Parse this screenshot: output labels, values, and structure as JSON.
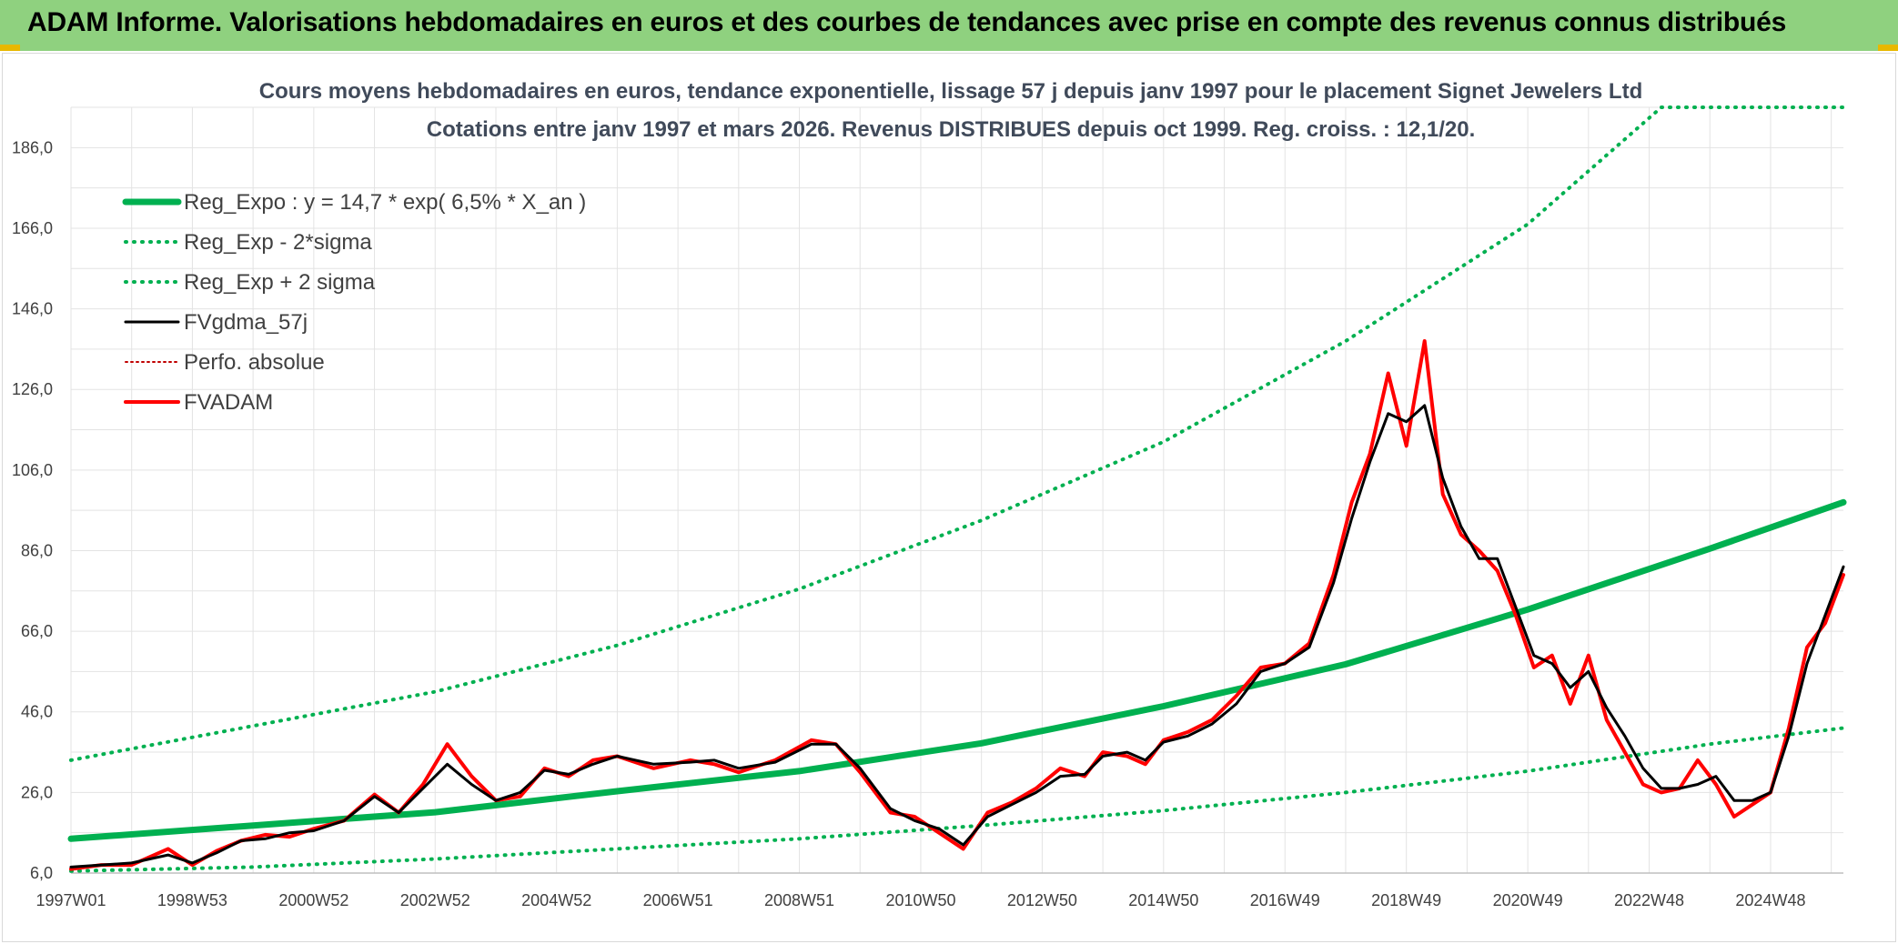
{
  "banner": {
    "title": "ADAM Informe. Valorisations hebdomadaires en euros et des courbes de tendances avec prise en compte des revenus connus distribués"
  },
  "chart_data": {
    "type": "line",
    "title": "Cours moyens hebdomadaires en euros, tendance exponentielle, lissage 57 j depuis janv 1997 pour le placement Signet Jewelers Ltd",
    "subtitle": "Cotations entre janv 1997 et mars 2026. Revenus DISTRIBUES depuis oct 1999. Reg. croiss. : 12,1/20.",
    "xlabel": "",
    "ylabel": "",
    "x_range": [
      1997.0,
      2026.2
    ],
    "ylim": [
      6.0,
      196.0
    ],
    "y_ticks": [
      "6,0",
      "26,0",
      "46,0",
      "66,0",
      "86,0",
      "106,0",
      "126,0",
      "146,0",
      "166,0",
      "186,0"
    ],
    "x_ticks": [
      {
        "label": "1997W01",
        "year": 1997.0
      },
      {
        "label": "1998W53",
        "year": 1999.0
      },
      {
        "label": "2000W52",
        "year": 2001.0
      },
      {
        "label": "2002W52",
        "year": 2003.0
      },
      {
        "label": "2004W52",
        "year": 2005.0
      },
      {
        "label": "2006W51",
        "year": 2007.0
      },
      {
        "label": "2008W51",
        "year": 2009.0
      },
      {
        "label": "2010W50",
        "year": 2011.0
      },
      {
        "label": "2012W50",
        "year": 2013.0
      },
      {
        "label": "2014W50",
        "year": 2015.0
      },
      {
        "label": "2016W49",
        "year": 2017.0
      },
      {
        "label": "2018W49",
        "year": 2019.0
      },
      {
        "label": "2020W49",
        "year": 2021.0
      },
      {
        "label": "2022W48",
        "year": 2023.0
      },
      {
        "label": "2024W48",
        "year": 2025.0
      }
    ],
    "grid": true,
    "legend_position": "top-left",
    "series": [
      {
        "name": "Reg_Expo : y = 14,7 * exp( 6,5% *  X_an )",
        "color": "#00b050",
        "style": "solid-thick",
        "points": [
          [
            1997.0,
            14.5
          ],
          [
            2000.0,
            17.8
          ],
          [
            2003.0,
            21.1
          ],
          [
            2006.0,
            26.3
          ],
          [
            2009.0,
            31.3
          ],
          [
            2012.0,
            38.2
          ],
          [
            2015.0,
            47.4
          ],
          [
            2018.0,
            57.8
          ],
          [
            2021.0,
            71.4
          ],
          [
            2024.0,
            86.5
          ],
          [
            2026.2,
            98.0
          ]
        ]
      },
      {
        "name": "Reg_Exp - 2*sigma",
        "color": "#00b050",
        "style": "dotted",
        "points": [
          [
            1997.0,
            6.5
          ],
          [
            2000.0,
            7.5
          ],
          [
            2003.0,
            9.5
          ],
          [
            2006.0,
            12.0
          ],
          [
            2009.0,
            14.5
          ],
          [
            2012.0,
            17.8
          ],
          [
            2015.0,
            21.5
          ],
          [
            2018.0,
            26.0
          ],
          [
            2021.0,
            31.3
          ],
          [
            2024.0,
            38.0
          ],
          [
            2026.2,
            42.0
          ]
        ]
      },
      {
        "name": "Reg_Exp + 2 sigma",
        "color": "#00b050",
        "style": "dotted",
        "points": [
          [
            1997.0,
            34.0
          ],
          [
            2000.0,
            42.5
          ],
          [
            2003.0,
            51.0
          ],
          [
            2006.0,
            62.5
          ],
          [
            2009.0,
            76.5
          ],
          [
            2012.0,
            93.5
          ],
          [
            2015.0,
            113.0
          ],
          [
            2018.0,
            138.0
          ],
          [
            2021.0,
            167.0
          ],
          [
            2023.2,
            196.0
          ],
          [
            2026.2,
            196.0
          ]
        ]
      },
      {
        "name": "FVgdma_57j",
        "color": "#000000",
        "style": "solid",
        "points": [
          [
            1997.0,
            7.5
          ],
          [
            1997.5,
            8.0
          ],
          [
            1998.0,
            8.5
          ],
          [
            1998.6,
            10.5
          ],
          [
            1999.0,
            8.5
          ],
          [
            1999.4,
            11.0
          ],
          [
            1999.8,
            14.0
          ],
          [
            2000.2,
            14.5
          ],
          [
            2000.6,
            16.0
          ],
          [
            2001.0,
            16.5
          ],
          [
            2001.5,
            19.0
          ],
          [
            2002.0,
            25.0
          ],
          [
            2002.4,
            21.0
          ],
          [
            2002.8,
            27.0
          ],
          [
            2003.2,
            33.0
          ],
          [
            2003.6,
            28.0
          ],
          [
            2004.0,
            24.0
          ],
          [
            2004.4,
            26.0
          ],
          [
            2004.8,
            31.5
          ],
          [
            2005.2,
            30.5
          ],
          [
            2005.6,
            33.0
          ],
          [
            2006.0,
            35.0
          ],
          [
            2006.6,
            33.0
          ],
          [
            2007.2,
            33.5
          ],
          [
            2007.6,
            34.0
          ],
          [
            2008.0,
            32.0
          ],
          [
            2008.6,
            33.5
          ],
          [
            2009.2,
            38.0
          ],
          [
            2009.6,
            38.0
          ],
          [
            2010.0,
            32.0
          ],
          [
            2010.5,
            22.0
          ],
          [
            2010.9,
            19.0
          ],
          [
            2011.3,
            17.0
          ],
          [
            2011.7,
            13.0
          ],
          [
            2012.1,
            20.0
          ],
          [
            2012.5,
            23.0
          ],
          [
            2012.9,
            26.0
          ],
          [
            2013.3,
            30.0
          ],
          [
            2013.7,
            30.5
          ],
          [
            2014.0,
            35.0
          ],
          [
            2014.4,
            36.0
          ],
          [
            2014.7,
            34.0
          ],
          [
            2015.0,
            38.5
          ],
          [
            2015.4,
            40.0
          ],
          [
            2015.8,
            43.0
          ],
          [
            2016.2,
            48.0
          ],
          [
            2016.6,
            56.0
          ],
          [
            2017.0,
            58.0
          ],
          [
            2017.4,
            62.0
          ],
          [
            2017.8,
            78.0
          ],
          [
            2018.1,
            94.0
          ],
          [
            2018.4,
            108.0
          ],
          [
            2018.7,
            120.0
          ],
          [
            2019.0,
            118.0
          ],
          [
            2019.3,
            122.0
          ],
          [
            2019.6,
            104.0
          ],
          [
            2019.9,
            92.0
          ],
          [
            2020.2,
            84.0
          ],
          [
            2020.5,
            84.0
          ],
          [
            2020.8,
            72.0
          ],
          [
            2021.1,
            60.0
          ],
          [
            2021.4,
            58.0
          ],
          [
            2021.7,
            52.0
          ],
          [
            2022.0,
            56.0
          ],
          [
            2022.3,
            47.0
          ],
          [
            2022.6,
            40.0
          ],
          [
            2022.9,
            32.0
          ],
          [
            2023.2,
            27.0
          ],
          [
            2023.5,
            27.0
          ],
          [
            2023.8,
            28.0
          ],
          [
            2024.1,
            30.0
          ],
          [
            2024.4,
            24.0
          ],
          [
            2024.7,
            24.0
          ],
          [
            2025.0,
            26.0
          ],
          [
            2025.3,
            40.0
          ],
          [
            2025.6,
            58.0
          ],
          [
            2025.9,
            70.0
          ],
          [
            2026.2,
            82.0
          ]
        ]
      },
      {
        "name": "Perfo. absolue",
        "color": "#c00000",
        "style": "dotted-thin",
        "points": []
      },
      {
        "name": "FVADAM",
        "color": "#ff0000",
        "style": "solid-thick",
        "points": [
          [
            1997.0,
            7.0
          ],
          [
            1997.5,
            8.0
          ],
          [
            1998.0,
            8.0
          ],
          [
            1998.6,
            12.0
          ],
          [
            1999.0,
            8.0
          ],
          [
            1999.4,
            11.5
          ],
          [
            1999.8,
            14.0
          ],
          [
            2000.2,
            15.5
          ],
          [
            2000.6,
            15.0
          ],
          [
            2001.0,
            17.0
          ],
          [
            2001.5,
            19.0
          ],
          [
            2002.0,
            25.5
          ],
          [
            2002.4,
            21.0
          ],
          [
            2002.8,
            28.0
          ],
          [
            2003.2,
            38.0
          ],
          [
            2003.6,
            30.0
          ],
          [
            2004.0,
            24.0
          ],
          [
            2004.4,
            25.0
          ],
          [
            2004.8,
            32.0
          ],
          [
            2005.2,
            30.0
          ],
          [
            2005.6,
            34.0
          ],
          [
            2006.0,
            35.0
          ],
          [
            2006.6,
            32.0
          ],
          [
            2007.2,
            34.0
          ],
          [
            2007.6,
            33.0
          ],
          [
            2008.0,
            31.0
          ],
          [
            2008.6,
            34.0
          ],
          [
            2009.2,
            39.0
          ],
          [
            2009.6,
            38.0
          ],
          [
            2010.0,
            31.0
          ],
          [
            2010.5,
            21.0
          ],
          [
            2010.9,
            20.0
          ],
          [
            2011.3,
            16.0
          ],
          [
            2011.7,
            12.0
          ],
          [
            2012.1,
            21.0
          ],
          [
            2012.5,
            23.5
          ],
          [
            2012.9,
            27.0
          ],
          [
            2013.3,
            32.0
          ],
          [
            2013.7,
            30.0
          ],
          [
            2014.0,
            36.0
          ],
          [
            2014.4,
            35.0
          ],
          [
            2014.7,
            33.0
          ],
          [
            2015.0,
            39.0
          ],
          [
            2015.4,
            41.0
          ],
          [
            2015.8,
            44.0
          ],
          [
            2016.2,
            50.0
          ],
          [
            2016.6,
            57.0
          ],
          [
            2017.0,
            58.0
          ],
          [
            2017.4,
            63.0
          ],
          [
            2017.8,
            80.0
          ],
          [
            2018.1,
            98.0
          ],
          [
            2018.4,
            110.0
          ],
          [
            2018.7,
            130.0
          ],
          [
            2019.0,
            112.0
          ],
          [
            2019.3,
            138.0
          ],
          [
            2019.6,
            100.0
          ],
          [
            2019.9,
            90.0
          ],
          [
            2020.2,
            86.0
          ],
          [
            2020.5,
            81.0
          ],
          [
            2020.8,
            70.0
          ],
          [
            2021.1,
            57.0
          ],
          [
            2021.4,
            60.0
          ],
          [
            2021.7,
            48.0
          ],
          [
            2022.0,
            60.0
          ],
          [
            2022.3,
            44.0
          ],
          [
            2022.6,
            36.0
          ],
          [
            2022.9,
            28.0
          ],
          [
            2023.2,
            26.0
          ],
          [
            2023.5,
            27.0
          ],
          [
            2023.8,
            34.0
          ],
          [
            2024.1,
            28.0
          ],
          [
            2024.4,
            20.0
          ],
          [
            2024.7,
            23.0
          ],
          [
            2025.0,
            26.0
          ],
          [
            2025.3,
            42.0
          ],
          [
            2025.6,
            62.0
          ],
          [
            2025.9,
            68.0
          ],
          [
            2026.2,
            80.0
          ]
        ]
      }
    ]
  }
}
